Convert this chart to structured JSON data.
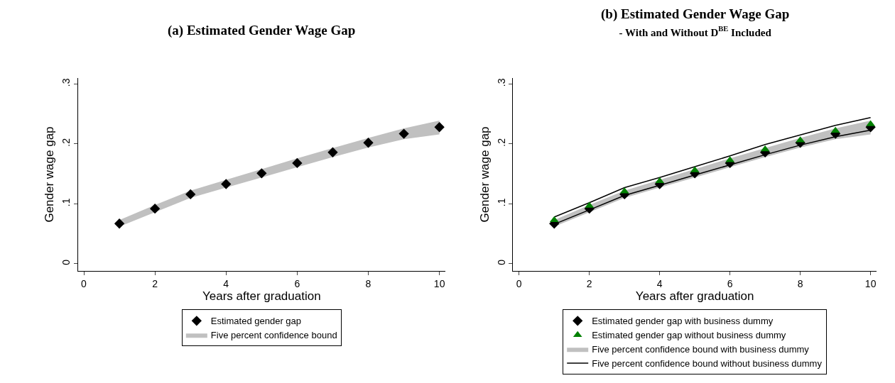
{
  "chart_data": [
    {
      "type": "scatter",
      "title": "(a) Estimated Gender Wage Gap",
      "xlabel": "Years after graduation",
      "ylabel": "Gender wage gap",
      "x": [
        1,
        2,
        3,
        4,
        5,
        6,
        7,
        8,
        9,
        10
      ],
      "series": [
        {
          "name": "Estimated gender gap",
          "marker": "diamond",
          "color": "#000000",
          "values": [
            0.067,
            0.092,
            0.116,
            0.133,
            0.151,
            0.168,
            0.186,
            0.202,
            0.217,
            0.228
          ]
        },
        {
          "name": "Five percent confidence bound",
          "type": "area",
          "color": "#c0c0c0",
          "values": [
            null,
            null,
            null,
            null,
            null,
            null,
            null,
            null,
            null,
            null
          ],
          "lower": [
            0.062,
            0.086,
            0.11,
            0.127,
            0.144,
            0.161,
            0.178,
            0.194,
            0.208,
            0.216
          ],
          "upper": [
            0.073,
            0.098,
            0.122,
            0.14,
            0.158,
            0.176,
            0.193,
            0.21,
            0.226,
            0.239
          ]
        }
      ],
      "xlim": [
        -0.17,
        10.17
      ],
      "xticks": [
        0,
        2,
        4,
        6,
        8,
        10
      ],
      "ylim": [
        -0.012,
        0.31
      ],
      "yticks": [
        0,
        {
          "value": 0.1,
          "label": ".1"
        },
        {
          "value": 0.2,
          "label": ".2"
        },
        {
          "value": 0.3,
          "label": ".3"
        }
      ],
      "legend": "bottom"
    },
    {
      "type": "scatter",
      "title": "(b) Estimated Gender Wage Gap",
      "subtitle": "- With and Without D$^{BE}$ Included",
      "xlabel": "Years after graduation",
      "ylabel": "Gender wage gap",
      "x": [
        1,
        2,
        3,
        4,
        5,
        6,
        7,
        8,
        9,
        10
      ],
      "series": [
        {
          "name": "Estimated gender gap with business dummy",
          "marker": "diamond",
          "color": "#000000",
          "values": [
            0.067,
            0.092,
            0.116,
            0.133,
            0.151,
            0.168,
            0.186,
            0.202,
            0.217,
            0.228
          ]
        },
        {
          "name": "Estimated gender gap without business dummy",
          "marker": "triangle",
          "color": "#008000",
          "values": [
            0.073,
            0.097,
            0.121,
            0.138,
            0.156,
            0.173,
            0.191,
            0.206,
            0.222,
            0.233
          ]
        },
        {
          "name": "Five percent confidence bound with business dummy",
          "type": "area",
          "color": "#c0c0c0",
          "values": [
            null,
            null,
            null,
            null,
            null,
            null,
            null,
            null,
            null,
            null
          ],
          "lower": [
            0.062,
            0.086,
            0.11,
            0.127,
            0.144,
            0.161,
            0.178,
            0.194,
            0.208,
            0.216
          ],
          "upper": [
            0.073,
            0.098,
            0.122,
            0.14,
            0.158,
            0.176,
            0.193,
            0.21,
            0.226,
            0.239
          ]
        },
        {
          "name": "Five percent confidence bound without business dummy",
          "type": "line",
          "color": "#000000",
          "values": [
            0.078,
            0.102,
            0.127,
            0.144,
            0.162,
            0.18,
            0.199,
            0.215,
            0.231,
            0.244
          ]
        },
        {
          "type": "line",
          "color": "#000000",
          "values": [
            0.066,
            0.09,
            0.114,
            0.131,
            0.148,
            0.165,
            0.182,
            0.198,
            0.212,
            0.223
          ]
        }
      ],
      "xlim": [
        -0.17,
        10.17
      ],
      "xticks": [
        0,
        2,
        4,
        6,
        8,
        10
      ],
      "ylim": [
        -0.012,
        0.31
      ],
      "yticks": [
        0,
        {
          "value": 0.1,
          "label": ".1"
        },
        {
          "value": 0.2,
          "label": ".2"
        },
        {
          "value": 0.3,
          "label": ".3"
        }
      ],
      "legend": "bottom"
    }
  ]
}
